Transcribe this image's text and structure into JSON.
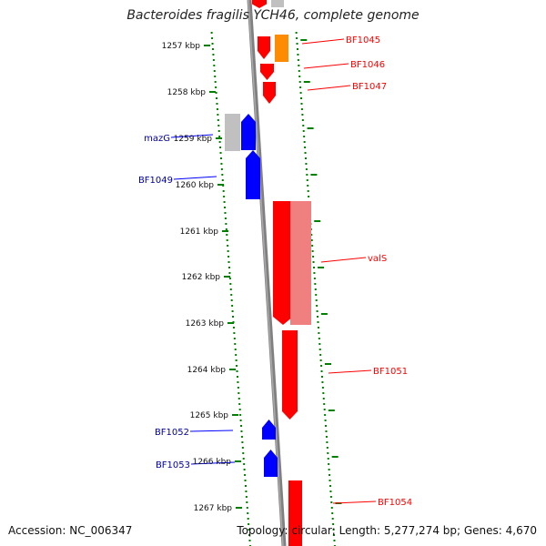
{
  "title": "Bacteroides fragilis YCH46, complete genome",
  "footer": {
    "accession": "Accession: NC_006347",
    "topology": "Topology: circular; Length: 5,277,274 bp; Genes: 4,670"
  },
  "colors": {
    "forward": "#ff0000",
    "forward_pale": "#f08080",
    "reverse": "#0000ff",
    "other": "#ff8c00",
    "neutral": "#c0c0c0",
    "backbone": "#808080",
    "ticks": "#008000"
  },
  "map": {
    "kbp_ticks": [
      "1257 kbp",
      "1258 kbp",
      "1259 kbp",
      "1260 kbp",
      "1261 kbp",
      "1262 kbp",
      "1263 kbp",
      "1264 kbp",
      "1265 kbp",
      "1266 kbp",
      "1267 kbp"
    ],
    "forward_labels": [
      "BF1045",
      "BF1046",
      "BF1047",
      "valS",
      "BF1051",
      "BF1054"
    ],
    "reverse_labels": [
      "mazG",
      "BF1049",
      "BF1052",
      "BF1053"
    ]
  }
}
